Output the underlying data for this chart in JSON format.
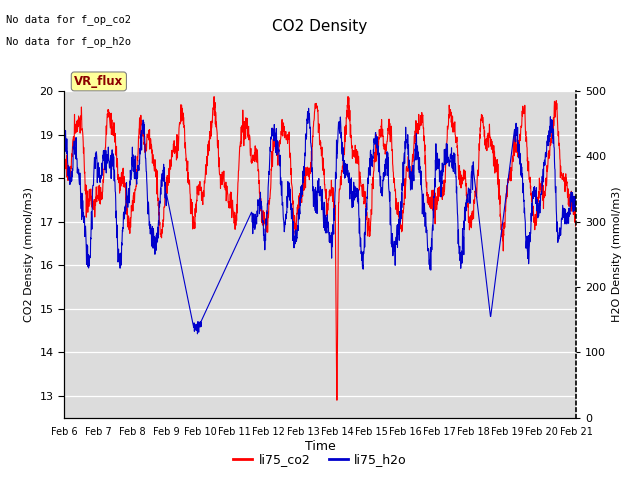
{
  "title": "CO2 Density",
  "xlabel": "Time",
  "ylabel_left": "CO2 Density (mmol/m3)",
  "ylabel_right": "H2O Density (mmol/m3)",
  "text_upper_left_line1": "No data for f_op_co2",
  "text_upper_left_line2": "No data for f_op_h2o",
  "vr_flux_label": "VR_flux",
  "legend_labels": [
    "li75_co2",
    "li75_h2o"
  ],
  "co2_color": "#FF0000",
  "h2o_color": "#0000CC",
  "ylim_left": [
    12.5,
    20.0
  ],
  "ylim_right": [
    0,
    500
  ],
  "xtick_labels": [
    "Feb 6",
    "Feb 7",
    "Feb 8",
    "Feb 9",
    "Feb 10",
    "Feb 11",
    "Feb 12",
    "Feb 13",
    "Feb 14",
    "Feb 15",
    "Feb 16",
    "Feb 17",
    "Feb 18",
    "Feb 19",
    "Feb 20",
    "Feb 21"
  ],
  "plot_bg": "#DCDCDC",
  "fig_bg": "#FFFFFF",
  "grid_color": "#FFFFFF"
}
